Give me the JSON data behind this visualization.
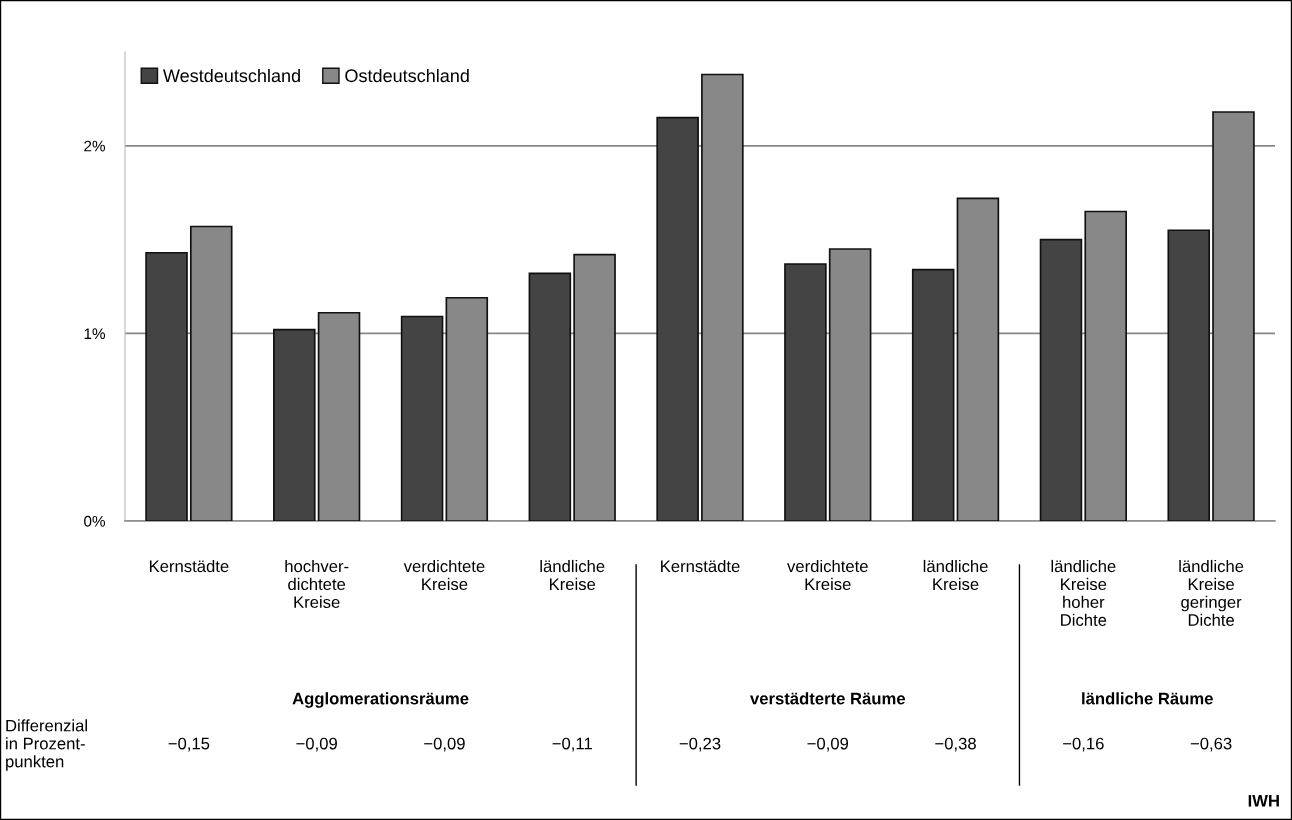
{
  "chart_data": {
    "type": "bar",
    "categories": [
      "Kernstädte",
      "hochver-\ndichtete\nKreise",
      "verdichtete\nKreise",
      "ländliche\nKreise",
      "Kernstädte",
      "verdichtete\nKreise",
      "ländliche\nKreise",
      "ländliche\nKreise\nhoher\nDichte",
      "ländliche\nKreise\ngeringer\nDichte"
    ],
    "series": [
      {
        "name": "Westdeutschland",
        "color": "#444444",
        "values": [
          1.43,
          1.02,
          1.09,
          1.32,
          2.15,
          1.37,
          1.34,
          1.5,
          1.55
        ]
      },
      {
        "name": "Ostdeutschland",
        "color": "#888888",
        "values": [
          1.57,
          1.11,
          1.19,
          1.42,
          2.38,
          1.45,
          1.72,
          1.65,
          2.18
        ]
      }
    ],
    "ylim": [
      0,
      2.5
    ],
    "yticks": [
      {
        "value": 0,
        "label": "0%"
      },
      {
        "value": 1,
        "label": "1%"
      },
      {
        "value": 2,
        "label": "2%"
      }
    ],
    "grid": "y",
    "legend": "top left",
    "annotations": [
      "Agglomerationsräume",
      "verstädterte Räume",
      "ländliche Räume",
      "Differenzial\nin Prozent-\npunkten",
      "−0,15",
      "−0,09",
      "−0,09",
      "−0,11",
      "−0,23",
      "−0,09",
      "−0,38",
      "−0,16",
      "−0,63",
      "IWH"
    ]
  }
}
